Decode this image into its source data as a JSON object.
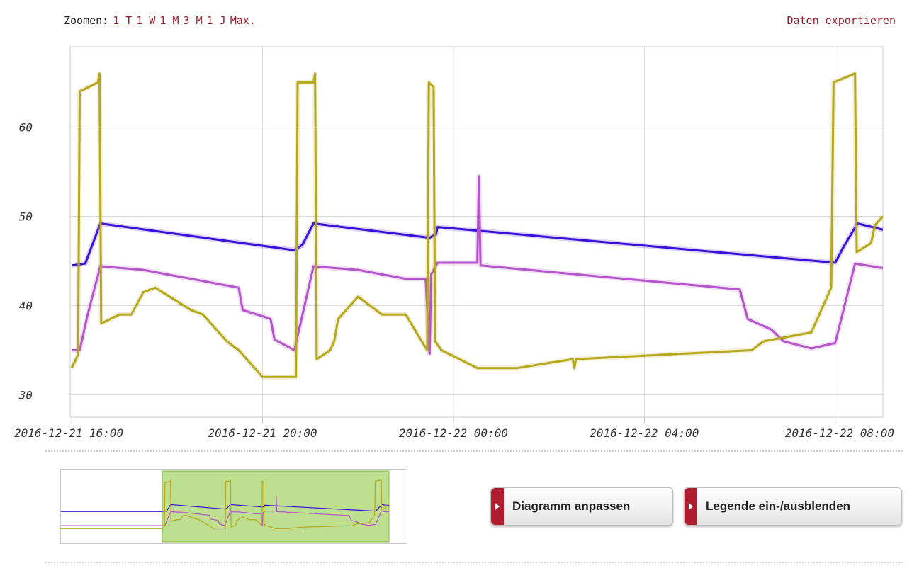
{
  "toolbar": {
    "zoom_label": "Zoomen:",
    "zoom_options": [
      "1 T",
      "1 W",
      "1 M",
      "3 M",
      "1 J",
      "Max."
    ],
    "active_zoom": "1 T",
    "export_label": "Daten exportieren"
  },
  "buttons": {
    "adjust_label": "Diagramm anpassen",
    "legend_label": "Legende ein-/ausblenden"
  },
  "colors": {
    "accent": "#9b1c2c",
    "series_blue": "#3a10d8",
    "series_purple": "#b455cc",
    "series_olive": "#b5a81d",
    "navigator_selection": "#a7d46a"
  },
  "chart_data": {
    "type": "line",
    "title": "",
    "xlabel": "",
    "ylabel": "",
    "ylim": [
      27.5,
      69
    ],
    "xlim": [
      "2016-12-21 15:58",
      "2016-12-22 09:00"
    ],
    "y_ticks": [
      30,
      40,
      50,
      60
    ],
    "x_ticks": [
      "2016-12-21 16:00",
      "2016-12-21 20:00",
      "2016-12-22 00:00",
      "2016-12-22 04:00",
      "2016-12-22 08:00"
    ],
    "grid": true,
    "legend": "none",
    "series": [
      {
        "color": "#3a10d8",
        "points": [
          [
            "2016-12-21 16:00",
            44.5
          ],
          [
            "2016-12-21 16:17",
            44.7
          ],
          [
            "2016-12-21 16:36",
            49.2
          ],
          [
            "2016-12-21 20:40",
            46.2
          ],
          [
            "2016-12-21 20:50",
            46.8
          ],
          [
            "2016-12-21 21:04",
            49.2
          ],
          [
            "2016-12-21 23:30",
            47.6
          ],
          [
            "2016-12-21 23:38",
            48.0
          ],
          [
            "2016-12-21 23:40",
            48.8
          ],
          [
            "2016-12-22 08:00",
            44.8
          ],
          [
            "2016-12-22 08:10",
            46.5
          ],
          [
            "2016-12-22 08:28",
            49.2
          ],
          [
            "2016-12-22 09:00",
            48.5
          ]
        ]
      },
      {
        "color": "#b455cc",
        "points": [
          [
            "2016-12-21 16:00",
            35.0
          ],
          [
            "2016-12-21 16:10",
            35.0
          ],
          [
            "2016-12-21 16:20",
            39.0
          ],
          [
            "2016-12-21 16:36",
            44.4
          ],
          [
            "2016-12-21 17:30",
            44.0
          ],
          [
            "2016-12-21 19:30",
            42.0
          ],
          [
            "2016-12-21 19:35",
            39.5
          ],
          [
            "2016-12-21 20:00",
            38.8
          ],
          [
            "2016-12-21 20:10",
            38.5
          ],
          [
            "2016-12-21 20:15",
            36.2
          ],
          [
            "2016-12-21 20:40",
            35.0
          ],
          [
            "2016-12-21 21:04",
            44.4
          ],
          [
            "2016-12-21 22:00",
            44.0
          ],
          [
            "2016-12-21 23:00",
            43.0
          ],
          [
            "2016-12-21 23:25",
            43.0
          ],
          [
            "2016-12-21 23:30",
            34.6
          ],
          [
            "2016-12-21 23:32",
            43.5
          ],
          [
            "2016-12-21 23:40",
            44.8
          ],
          [
            "2016-12-22 00:30",
            44.8
          ],
          [
            "2016-12-22 00:32",
            54.5
          ],
          [
            "2016-12-22 00:34",
            44.5
          ],
          [
            "2016-12-22 06:00",
            41.8
          ],
          [
            "2016-12-22 06:10",
            38.5
          ],
          [
            "2016-12-22 06:40",
            37.3
          ],
          [
            "2016-12-22 06:55",
            36.0
          ],
          [
            "2016-12-22 07:30",
            35.2
          ],
          [
            "2016-12-22 08:00",
            35.8
          ],
          [
            "2016-12-22 08:25",
            44.7
          ],
          [
            "2016-12-22 09:00",
            44.2
          ]
        ]
      },
      {
        "color": "#b5a81d",
        "points": [
          [
            "2016-12-21 16:00",
            33.0
          ],
          [
            "2016-12-21 16:08",
            34.5
          ],
          [
            "2016-12-21 16:10",
            64.0
          ],
          [
            "2016-12-21 16:33",
            65.0
          ],
          [
            "2016-12-21 16:35",
            66.0
          ],
          [
            "2016-12-21 16:37",
            38.0
          ],
          [
            "2016-12-21 17:00",
            39.0
          ],
          [
            "2016-12-21 17:15",
            39.0
          ],
          [
            "2016-12-21 17:30",
            41.5
          ],
          [
            "2016-12-21 17:45",
            42.0
          ],
          [
            "2016-12-21 18:30",
            39.5
          ],
          [
            "2016-12-21 18:45",
            39.0
          ],
          [
            "2016-12-21 19:15",
            36.0
          ],
          [
            "2016-12-21 19:30",
            35.0
          ],
          [
            "2016-12-21 20:00",
            32.0
          ],
          [
            "2016-12-21 20:42",
            32.0
          ],
          [
            "2016-12-21 20:44",
            65.0
          ],
          [
            "2016-12-21 21:04",
            65.0
          ],
          [
            "2016-12-21 21:06",
            66.0
          ],
          [
            "2016-12-21 21:08",
            34.0
          ],
          [
            "2016-12-21 21:25",
            35.0
          ],
          [
            "2016-12-21 21:30",
            36.0
          ],
          [
            "2016-12-21 21:35",
            38.5
          ],
          [
            "2016-12-21 22:00",
            41.0
          ],
          [
            "2016-12-21 22:30",
            39.0
          ],
          [
            "2016-12-21 23:00",
            39.0
          ],
          [
            "2016-12-21 23:20",
            36.0
          ],
          [
            "2016-12-21 23:27",
            35.0
          ],
          [
            "2016-12-21 23:29",
            65.0
          ],
          [
            "2016-12-21 23:35",
            64.5
          ],
          [
            "2016-12-21 23:37",
            36.0
          ],
          [
            "2016-12-21 23:45",
            35.0
          ],
          [
            "2016-12-22 00:30",
            33.0
          ],
          [
            "2016-12-22 01:20",
            33.0
          ],
          [
            "2016-12-22 02:30",
            34.0
          ],
          [
            "2016-12-22 02:32",
            33.0
          ],
          [
            "2016-12-22 02:34",
            34.0
          ],
          [
            "2016-12-22 06:15",
            35.0
          ],
          [
            "2016-12-22 06:30",
            36.0
          ],
          [
            "2016-12-22 07:00",
            36.5
          ],
          [
            "2016-12-22 07:30",
            37.0
          ],
          [
            "2016-12-22 07:40",
            39.0
          ],
          [
            "2016-12-22 07:55",
            42.0
          ],
          [
            "2016-12-22 07:58",
            65.0
          ],
          [
            "2016-12-22 08:25",
            66.0
          ],
          [
            "2016-12-22 08:27",
            46.0
          ],
          [
            "2016-12-22 08:45",
            47.0
          ],
          [
            "2016-12-22 08:50",
            49.0
          ],
          [
            "2016-12-22 09:00",
            50.0
          ]
        ]
      }
    ]
  }
}
